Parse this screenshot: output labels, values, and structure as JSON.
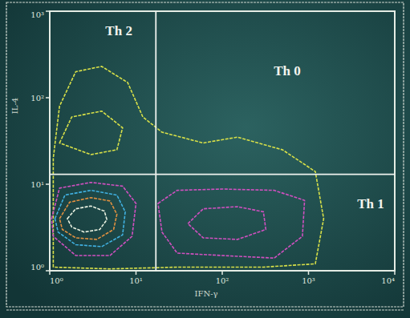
{
  "chart_data": {
    "type": "contour",
    "x_label": "IFN-γ",
    "y_label": "IL-4",
    "log": true,
    "xlim": [
      1,
      10000
    ],
    "ylim": [
      1,
      1000
    ],
    "xticks": [
      {
        "value": 1,
        "label": "10⁰"
      },
      {
        "value": 10,
        "label": "10¹"
      },
      {
        "value": 100,
        "label": "10²"
      },
      {
        "value": 1000,
        "label": "10³"
      },
      {
        "value": 10000,
        "label": "10⁴"
      }
    ],
    "yticks": [
      {
        "value": 1,
        "label": "10⁰"
      },
      {
        "value": 10,
        "label": "10¹"
      },
      {
        "value": 100,
        "label": "10²"
      },
      {
        "value": 1000,
        "label": "10³"
      }
    ],
    "gates": {
      "x": 17,
      "y": 13
    },
    "quadrant_labels": {
      "upper_left": "Th 2",
      "upper_right": "Th 0",
      "lower_right": "Th 1"
    },
    "contours": [
      {
        "color": "#d8e048",
        "points": [
          [
            1.1,
            1.1
          ],
          [
            1.1,
            20
          ],
          [
            1.3,
            80
          ],
          [
            2,
            200
          ],
          [
            4,
            230
          ],
          [
            8,
            150
          ],
          [
            12,
            60
          ],
          [
            20,
            40
          ],
          [
            60,
            30
          ],
          [
            150,
            35
          ],
          [
            500,
            25
          ],
          [
            1200,
            14
          ],
          [
            1500,
            4
          ],
          [
            1200,
            1.2
          ],
          [
            300,
            1.1
          ],
          [
            30,
            1.1
          ],
          [
            5,
            1.05
          ]
        ]
      },
      {
        "color": "#d8e048",
        "points": [
          [
            1.3,
            30
          ],
          [
            1.8,
            60
          ],
          [
            4,
            70
          ],
          [
            7,
            45
          ],
          [
            6,
            25
          ],
          [
            3,
            22
          ]
        ]
      },
      {
        "color": "#d050c0",
        "points": [
          [
            1.05,
            4
          ],
          [
            1.3,
            9
          ],
          [
            3,
            10.5
          ],
          [
            7,
            9.5
          ],
          [
            10,
            6
          ],
          [
            9,
            2.5
          ],
          [
            5,
            1.5
          ],
          [
            2,
            1.5
          ],
          [
            1.1,
            2.5
          ]
        ]
      },
      {
        "color": "#40b0e0",
        "points": [
          [
            1.15,
            4
          ],
          [
            1.5,
            7.5
          ],
          [
            3,
            8.5
          ],
          [
            6,
            7.5
          ],
          [
            7.5,
            4.8
          ],
          [
            7,
            2.6
          ],
          [
            4,
            1.9
          ],
          [
            2,
            2
          ],
          [
            1.25,
            2.8
          ]
        ]
      },
      {
        "color": "#e09040",
        "points": [
          [
            1.3,
            4
          ],
          [
            1.7,
            6.2
          ],
          [
            3,
            7
          ],
          [
            5,
            6.4
          ],
          [
            6,
            4.5
          ],
          [
            5.5,
            3
          ],
          [
            3.5,
            2.3
          ],
          [
            2,
            2.4
          ],
          [
            1.4,
            3
          ]
        ]
      },
      {
        "color": "#e8f0e0",
        "points": [
          [
            1.6,
            4
          ],
          [
            2,
            5.2
          ],
          [
            3,
            5.6
          ],
          [
            4.3,
            4.9
          ],
          [
            4.6,
            3.9
          ],
          [
            3.8,
            3
          ],
          [
            2.5,
            2.8
          ],
          [
            1.8,
            3.2
          ]
        ]
      },
      {
        "color": "#d050c0",
        "points": [
          [
            18,
            6
          ],
          [
            30,
            8.5
          ],
          [
            100,
            8.8
          ],
          [
            400,
            8.5
          ],
          [
            900,
            6.5
          ],
          [
            850,
            2.5
          ],
          [
            400,
            1.4
          ],
          [
            100,
            1.5
          ],
          [
            30,
            1.6
          ],
          [
            20,
            2.8
          ]
        ]
      },
      {
        "color": "#d050c0",
        "points": [
          [
            40,
            3.5
          ],
          [
            60,
            5.2
          ],
          [
            150,
            5.5
          ],
          [
            300,
            4.8
          ],
          [
            320,
            3
          ],
          [
            150,
            2.3
          ],
          [
            60,
            2.4
          ]
        ]
      }
    ]
  }
}
